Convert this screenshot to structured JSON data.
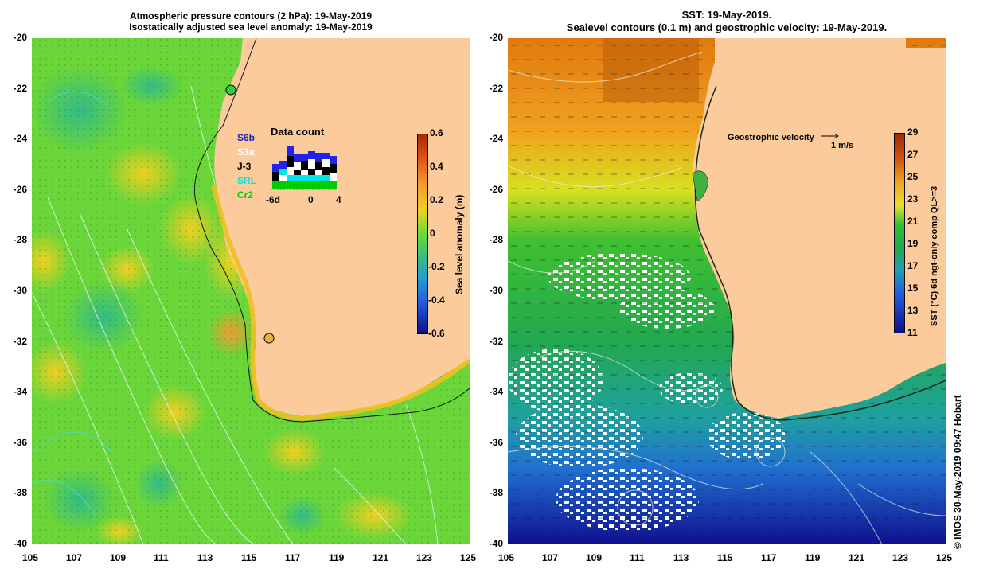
{
  "left_panel": {
    "title_line1": "Atmospheric pressure contours (2 hPa): 19-May-2019",
    "title_line2": "Isostatically adjusted sea level anomaly: 19-May-2019",
    "y_ticks": [
      "-20",
      "-22",
      "-24",
      "-26",
      "-28",
      "-30",
      "-32",
      "-34",
      "-36",
      "-38",
      "-40"
    ],
    "x_ticks": [
      "105",
      "107",
      "109",
      "111",
      "113",
      "115",
      "117",
      "119",
      "121",
      "123",
      "125"
    ],
    "colorbar": {
      "ticks": [
        "0.6",
        "0.4",
        "0.2",
        "0",
        "-0.2",
        "-0.4",
        "-0.6"
      ],
      "label": "Sea level anomaly (m)"
    },
    "data_count": {
      "title": "Data count",
      "sources": [
        "S6b",
        "S3a",
        "J-3",
        "SRL",
        "Cr2"
      ],
      "source_colors": [
        "#2222aa",
        "#ffffff",
        "#000000",
        "#00e5e5",
        "#00cc00"
      ],
      "x_ticks": [
        "-6d",
        "0",
        "4"
      ]
    }
  },
  "right_panel": {
    "title_line1": "SST: 19-May-2019.",
    "title_line2": "Sealevel contours (0.1 m) and geostrophic velocity: 19-May-2019.",
    "y_ticks": [
      "-20",
      "-22",
      "-24",
      "-26",
      "-28",
      "-30",
      "-32",
      "-34",
      "-36",
      "-38",
      "-40"
    ],
    "x_ticks": [
      "105",
      "107",
      "109",
      "111",
      "113",
      "115",
      "117",
      "119",
      "121",
      "123",
      "125"
    ],
    "colorbar": {
      "ticks": [
        "29",
        "27",
        "25",
        "23",
        "21",
        "19",
        "17",
        "15",
        "13",
        "11"
      ],
      "label": "SST (°C) 6d ngt-only comp QL>=3"
    },
    "velocity_legend": {
      "label": "Geostrophic velocity",
      "scale": "1 m/s"
    }
  },
  "credit": "© IMOS 30-May-2019 09:47 Hobart",
  "colors": {
    "land": "#fccb9c",
    "sla_bg": "#66dd33",
    "sst_bg": "#33bb44"
  }
}
